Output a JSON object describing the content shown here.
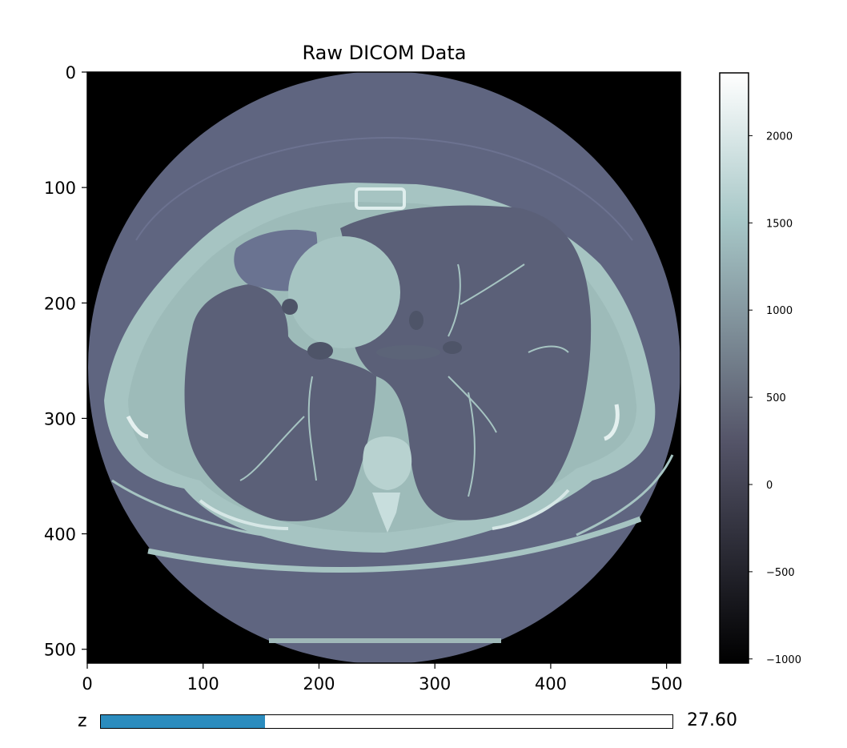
{
  "chart_data": {
    "type": "heatmap",
    "title": "Raw DICOM Data",
    "image": {
      "colormap": "bone",
      "xlim": [
        0,
        512
      ],
      "ylim": [
        512,
        0
      ],
      "x_ticks": [
        0,
        100,
        200,
        300,
        400,
        500
      ],
      "y_ticks": [
        0,
        100,
        200,
        300,
        400,
        500
      ],
      "x_tick_labels": [
        "0",
        "100",
        "200",
        "300",
        "400",
        "500"
      ],
      "y_tick_labels": [
        "0",
        "100",
        "200",
        "300",
        "400",
        "500"
      ]
    },
    "colorbar": {
      "min": -1024,
      "max": 2360,
      "ticks": [
        -1000,
        -500,
        0,
        500,
        1000,
        1500,
        2000
      ],
      "tick_labels": [
        "−1000",
        "−500",
        "0",
        "500",
        "1000",
        "1500",
        "2000"
      ],
      "location": "right"
    }
  },
  "slider": {
    "label": "z",
    "value_text": "27.60",
    "value": 27.6,
    "min": 0,
    "max": 96,
    "fill_color": "#2b8cbe"
  },
  "colors": {
    "background": "#000000",
    "body": "#5f6580",
    "tissue": "#a6c4c2",
    "lung": "#5b6078"
  }
}
